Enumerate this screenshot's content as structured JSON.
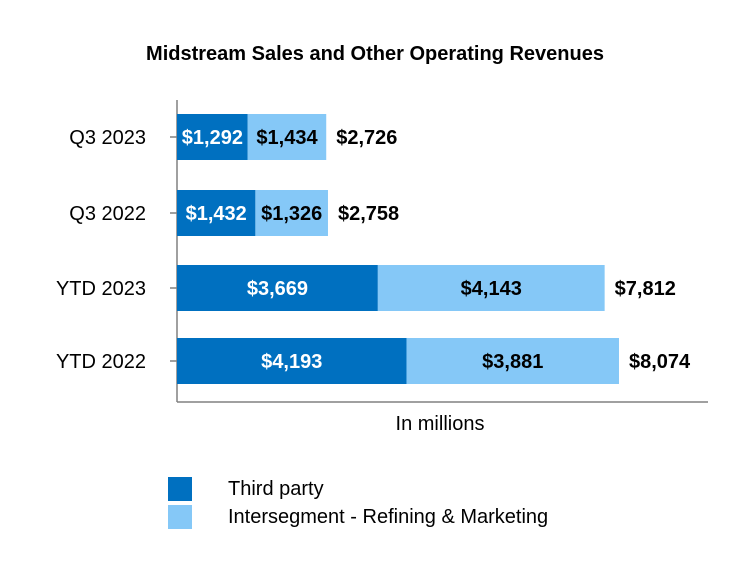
{
  "chart_data": {
    "type": "bar",
    "orientation": "horizontal",
    "stacked": true,
    "title": "Midstream Sales and Other Operating Revenues",
    "xlabel": "In millions",
    "ylabel": "",
    "categories": [
      "Q3 2023",
      "Q3 2022",
      "YTD 2023",
      "YTD 2022"
    ],
    "series": [
      {
        "name": "Third party",
        "values": [
          1292,
          1432,
          3669,
          4193
        ],
        "labels": [
          "$1,292",
          "$1,432",
          "$3,669",
          "$4,193"
        ],
        "color": "#0070C0"
      },
      {
        "name": "Intersegment - Refining & Marketing",
        "values": [
          1434,
          1326,
          4143,
          3881
        ],
        "labels": [
          "$1,434",
          "$1,326",
          "$4,143",
          "$3,881"
        ],
        "color": "#85C8F7"
      }
    ],
    "totals": [
      2726,
      2758,
      7812,
      8074
    ],
    "total_labels": [
      "$2,726",
      "$2,758",
      "$7,812",
      "$8,074"
    ],
    "xlim": [
      0,
      9700
    ],
    "grid": false,
    "legend_position": "bottom-left"
  }
}
